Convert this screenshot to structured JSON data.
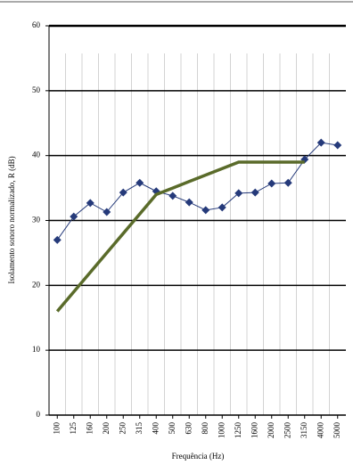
{
  "chart_data": {
    "type": "line",
    "x_label": "Frequência (Hz)",
    "y_label": "Isolamento sonoro normalizado, R (dB)",
    "categories": [
      "100",
      "125",
      "160",
      "200",
      "250",
      "315",
      "400",
      "500",
      "630",
      "800",
      "1000",
      "1250",
      "1600",
      "2000",
      "2500",
      "3150",
      "4000",
      "5000"
    ],
    "series": [
      {
        "color": "#253a7a",
        "marker": "diamond",
        "values": [
          27.0,
          30.6,
          32.7,
          31.3,
          34.3,
          35.8,
          34.5,
          33.8,
          32.8,
          31.6,
          32.0,
          34.2,
          34.3,
          35.7,
          35.8,
          39.4,
          42.0,
          41.6
        ]
      },
      {
        "color": "#5a6b2a",
        "marker": "none",
        "values": [
          16,
          19,
          22,
          25,
          28,
          31,
          34,
          35,
          36,
          37,
          38,
          39,
          39,
          39,
          39,
          39,
          null,
          null
        ]
      }
    ],
    "ylim": [
      0,
      60
    ],
    "yticks": [
      0,
      10,
      20,
      30,
      40,
      50,
      60
    ],
    "grid": true
  }
}
